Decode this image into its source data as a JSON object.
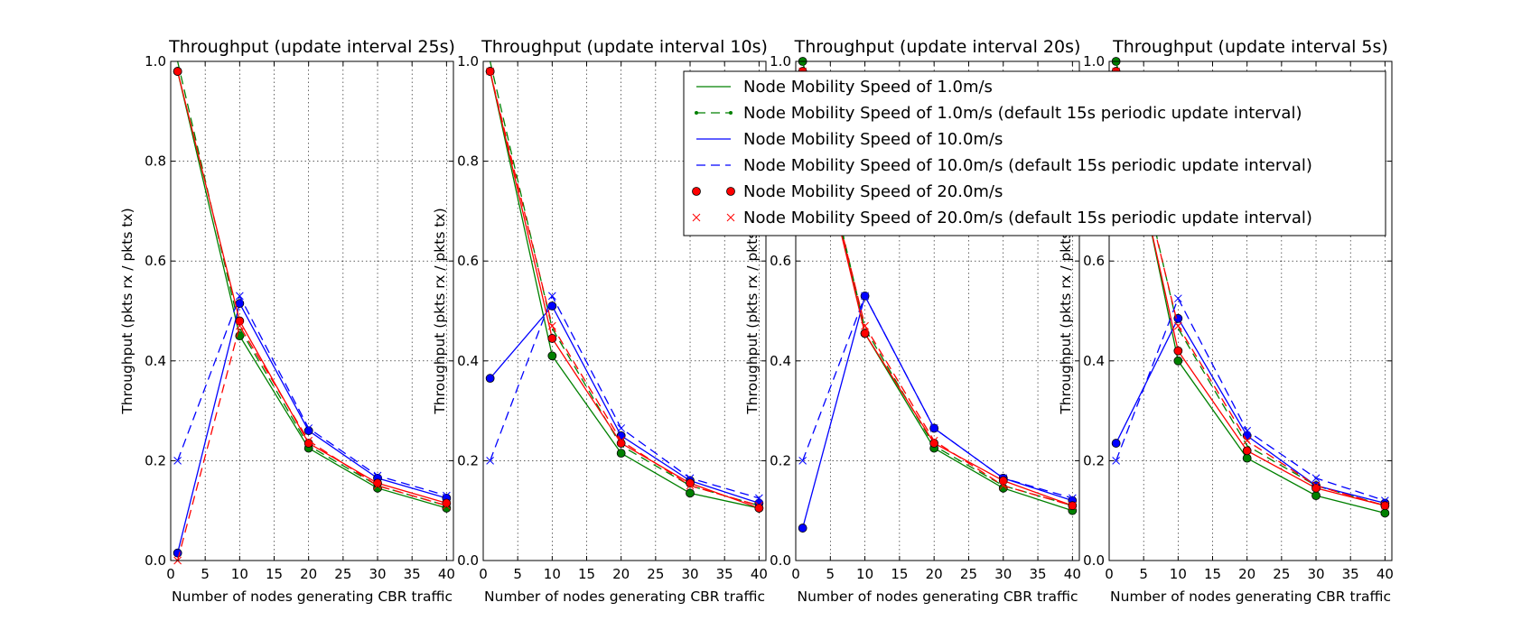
{
  "chart_data": [
    {
      "type": "line",
      "title": "Throughput (update interval 25s)",
      "xlabel": "Number of nodes generating CBR traffic",
      "ylabel": "Throughput (pkts rx / pkts tx)",
      "xlim": [
        0,
        41
      ],
      "ylim": [
        0,
        1.0
      ],
      "xticks": [
        "0",
        "5",
        "10",
        "15",
        "20",
        "25",
        "30",
        "35",
        "40"
      ],
      "yticks": [
        "0.0",
        "0.2",
        "0.4",
        "0.6",
        "0.8",
        "1.0"
      ],
      "grid": true,
      "x": [
        1,
        10,
        20,
        30,
        40
      ],
      "series": [
        {
          "name": "Node Mobility Speed of 1.0m/s",
          "values": [
            0.98,
            0.45,
            0.225,
            0.145,
            0.105
          ]
        },
        {
          "name": "Node Mobility Speed of 1.0m/s (default 15s periodic update interval)",
          "values": [
            1.0,
            0.465,
            0.23,
            0.15,
            0.11
          ]
        },
        {
          "name": "Node Mobility Speed of 10.0m/s",
          "values": [
            0.015,
            0.515,
            0.26,
            0.165,
            0.125
          ]
        },
        {
          "name": "Node Mobility Speed of 10.0m/s (default 15s periodic update interval)",
          "values": [
            0.2,
            0.53,
            0.265,
            0.17,
            0.13
          ]
        },
        {
          "name": "Node Mobility Speed of 20.0m/s",
          "values": [
            0.98,
            0.48,
            0.235,
            0.155,
            0.115
          ]
        },
        {
          "name": "Node Mobility Speed of 20.0m/s (default 15s periodic update interval)",
          "values": [
            0.0,
            0.47,
            0.24,
            0.15,
            0.11
          ]
        }
      ]
    },
    {
      "type": "line",
      "title": "Throughput (update interval 10s)",
      "xlabel": "Number of nodes generating CBR traffic",
      "ylabel": "Throughput (pkts rx / pkts tx)",
      "xlim": [
        0,
        41
      ],
      "ylim": [
        0,
        1.0
      ],
      "xticks": [
        "0",
        "5",
        "10",
        "15",
        "20",
        "25",
        "30",
        "35",
        "40"
      ],
      "yticks": [
        "0.0",
        "0.2",
        "0.4",
        "0.6",
        "0.8",
        "1.0"
      ],
      "grid": true,
      "x": [
        1,
        10,
        20,
        30,
        40
      ],
      "series": [
        {
          "name": "Node Mobility Speed of 1.0m/s",
          "values": [
            0.98,
            0.41,
            0.215,
            0.135,
            0.105
          ]
        },
        {
          "name": "Node Mobility Speed of 1.0m/s (default 15s periodic update interval)",
          "values": [
            1.0,
            0.465,
            0.23,
            0.15,
            0.11
          ]
        },
        {
          "name": "Node Mobility Speed of 10.0m/s",
          "values": [
            0.365,
            0.51,
            0.25,
            0.16,
            0.115
          ]
        },
        {
          "name": "Node Mobility Speed of 10.0m/s (default 15s periodic update interval)",
          "values": [
            0.2,
            0.53,
            0.265,
            0.165,
            0.125
          ]
        },
        {
          "name": "Node Mobility Speed of 20.0m/s",
          "values": [
            0.98,
            0.445,
            0.235,
            0.155,
            0.105
          ]
        },
        {
          "name": "Node Mobility Speed of 20.0m/s (default 15s periodic update interval)",
          "values": [
            0.98,
            0.47,
            0.24,
            0.15,
            0.11
          ]
        }
      ]
    },
    {
      "type": "line",
      "title": "Throughput (update interval 20s)",
      "xlabel": "Number of nodes generating CBR traffic",
      "ylabel": "Throughput (pkts rx / pkts tx)",
      "xlim": [
        0,
        41
      ],
      "ylim": [
        0,
        1.0
      ],
      "xticks": [
        "0",
        "5",
        "10",
        "15",
        "20",
        "25",
        "30",
        "35",
        "40"
      ],
      "yticks": [
        "0.0",
        "0.2",
        "0.4",
        "0.6",
        "0.8",
        "1.0"
      ],
      "grid": true,
      "x": [
        1,
        10,
        20,
        30,
        40
      ],
      "series": [
        {
          "name": "Node Mobility Speed of 1.0m/s",
          "values": [
            1.0,
            0.455,
            0.225,
            0.145,
            0.1
          ]
        },
        {
          "name": "Node Mobility Speed of 1.0m/s (default 15s periodic update interval)",
          "values": [
            1.0,
            0.465,
            0.23,
            0.15,
            0.11
          ]
        },
        {
          "name": "Node Mobility Speed of 10.0m/s",
          "values": [
            0.065,
            0.53,
            0.265,
            0.165,
            0.12
          ]
        },
        {
          "name": "Node Mobility Speed of 10.0m/s (default 15s periodic update interval)",
          "values": [
            0.2,
            0.53,
            0.265,
            0.165,
            0.125
          ]
        },
        {
          "name": "Node Mobility Speed of 20.0m/s",
          "values": [
            0.98,
            0.455,
            0.235,
            0.16,
            0.11
          ]
        },
        {
          "name": "Node Mobility Speed of 20.0m/s (default 15s periodic update interval)",
          "values": [
            0.98,
            0.47,
            0.24,
            0.15,
            0.11
          ]
        }
      ]
    },
    {
      "type": "line",
      "title": "Throughput (update interval 5s)",
      "xlabel": "Number of nodes generating CBR traffic",
      "ylabel": "Throughput (pkts rx / pkts tx)",
      "xlim": [
        0,
        41
      ],
      "ylim": [
        0,
        1.0
      ],
      "xticks": [
        "0",
        "5",
        "10",
        "15",
        "20",
        "25",
        "30",
        "35",
        "40"
      ],
      "yticks": [
        "0.0",
        "0.2",
        "0.4",
        "0.6",
        "0.8",
        "1.0"
      ],
      "grid": true,
      "x": [
        1,
        10,
        20,
        30,
        40
      ],
      "series": [
        {
          "name": "Node Mobility Speed of 1.0m/s",
          "values": [
            1.0,
            0.4,
            0.205,
            0.13,
            0.095
          ]
        },
        {
          "name": "Node Mobility Speed of 1.0m/s (default 15s periodic update interval)",
          "values": [
            1.0,
            0.465,
            0.23,
            0.15,
            0.11
          ]
        },
        {
          "name": "Node Mobility Speed of 10.0m/s",
          "values": [
            0.235,
            0.485,
            0.25,
            0.15,
            0.115
          ]
        },
        {
          "name": "Node Mobility Speed of 10.0m/s (default 15s periodic update interval)",
          "values": [
            0.2,
            0.525,
            0.26,
            0.165,
            0.12
          ]
        },
        {
          "name": "Node Mobility Speed of 20.0m/s",
          "values": [
            0.98,
            0.42,
            0.22,
            0.145,
            0.11
          ]
        },
        {
          "name": "Node Mobility Speed of 20.0m/s (default 15s periodic update interval)",
          "values": [
            0.98,
            0.47,
            0.24,
            0.15,
            0.11
          ]
        }
      ]
    }
  ],
  "legend": {
    "placement": "top-right",
    "entries": [
      {
        "label": "Node Mobility Speed of 1.0m/s",
        "color": "#008000",
        "line": "solid",
        "marker": "none"
      },
      {
        "label": "Node Mobility Speed of 1.0m/s (default 15s periodic update interval)",
        "color": "#008000",
        "line": "dashed",
        "marker": "dot"
      },
      {
        "label": "Node Mobility Speed of 10.0m/s",
        "color": "#0000ff",
        "line": "solid",
        "marker": "none"
      },
      {
        "label": "Node Mobility Speed of 10.0m/s (default 15s periodic update interval)",
        "color": "#0000ff",
        "line": "dashed",
        "marker": "none"
      },
      {
        "label": "Node Mobility Speed of 20.0m/s",
        "color": "#ff0000",
        "line": "none",
        "marker": "circle"
      },
      {
        "label": "Node Mobility Speed of 20.0m/s (default 15s periodic update interval)",
        "color": "#ff0000",
        "line": "none",
        "marker": "x"
      }
    ]
  },
  "styles": [
    {
      "color": "#008000",
      "dash": "solid",
      "marker": "circle"
    },
    {
      "color": "#008000",
      "dash": "dashed",
      "marker": "none"
    },
    {
      "color": "#0000ff",
      "dash": "solid",
      "marker": "circle"
    },
    {
      "color": "#0000ff",
      "dash": "dashed",
      "marker": "x"
    },
    {
      "color": "#ff0000",
      "dash": "solid",
      "marker": "circle"
    },
    {
      "color": "#ff0000",
      "dash": "dashed",
      "marker": "x"
    }
  ]
}
